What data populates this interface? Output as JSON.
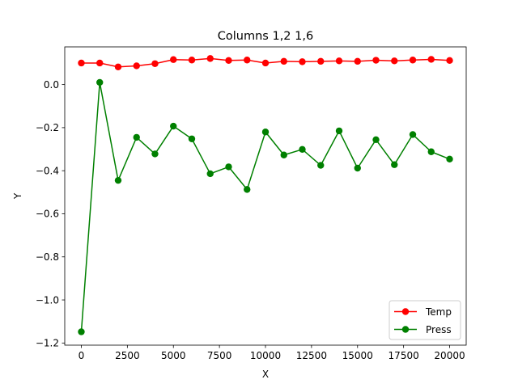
{
  "chart_data": {
    "type": "line",
    "title": "Columns 1,2 1,6",
    "xlabel": "X",
    "ylabel": "Y",
    "xlim": [
      -900,
      20900
    ],
    "ylim": [
      -1.21,
      0.175
    ],
    "x_ticks": [
      0,
      2500,
      5000,
      7500,
      10000,
      12500,
      15000,
      17500,
      20000
    ],
    "x_tick_labels": [
      "0",
      "2500",
      "5000",
      "7500",
      "10000",
      "12500",
      "15000",
      "17500",
      "20000"
    ],
    "y_ticks": [
      0.0,
      -0.2,
      -0.4,
      -0.6,
      -0.8,
      -1.0,
      -1.2
    ],
    "y_tick_labels": [
      "0.0",
      "−0.2",
      "−0.4",
      "−0.6",
      "−0.8",
      "−1.0",
      "−1.2"
    ],
    "grid": false,
    "legend_position": "lower-right",
    "x": [
      0,
      1000,
      2000,
      3000,
      4000,
      5000,
      6000,
      7000,
      8000,
      9000,
      10000,
      11000,
      12000,
      13000,
      14000,
      15000,
      16000,
      17000,
      18000,
      19000,
      20000
    ],
    "series": [
      {
        "name": "Temp",
        "color": "#ff0000",
        "marker": "circle",
        "values": [
          0.1,
          0.1,
          0.082,
          0.087,
          0.097,
          0.116,
          0.114,
          0.121,
          0.112,
          0.114,
          0.1,
          0.108,
          0.106,
          0.108,
          0.11,
          0.108,
          0.113,
          0.11,
          0.114,
          0.117,
          0.112
        ]
      },
      {
        "name": "Press",
        "color": "#008000",
        "marker": "circle",
        "values": [
          -1.148,
          0.01,
          -0.445,
          -0.245,
          -0.322,
          -0.193,
          -0.252,
          -0.414,
          -0.382,
          -0.487,
          -0.22,
          -0.327,
          -0.301,
          -0.375,
          -0.215,
          -0.388,
          -0.256,
          -0.372,
          -0.232,
          -0.312,
          -0.346
        ]
      }
    ]
  }
}
